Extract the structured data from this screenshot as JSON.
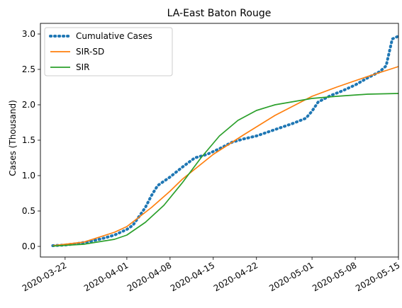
{
  "chart_data": {
    "type": "line",
    "title": "LA-East Baton Rouge",
    "xlabel": "",
    "ylabel": "Cases (Thousand)",
    "x_type": "date",
    "xlim": [
      "2020-03-18",
      "2020-05-15"
    ],
    "ylim": [
      -0.15,
      3.15
    ],
    "x_ticks": [
      "2020-03-22",
      "2020-04-01",
      "2020-04-08",
      "2020-04-15",
      "2020-04-22",
      "2020-05-01",
      "2020-05-08",
      "2020-05-15"
    ],
    "y_ticks": [
      0.0,
      0.5,
      1.0,
      1.5,
      2.0,
      2.5,
      3.0
    ],
    "y_tick_labels": [
      "0.0",
      "0.5",
      "1.0",
      "1.5",
      "2.0",
      "2.5",
      "3.0"
    ],
    "grid": false,
    "legend_position": "top-left",
    "series": [
      {
        "name": "Cumulative Cases",
        "style": "dotted",
        "color": "#1f77b4",
        "points": [
          [
            "2020-03-20",
            0.01
          ],
          [
            "2020-03-22",
            0.02
          ],
          [
            "2020-03-24",
            0.04
          ],
          [
            "2020-03-26",
            0.07
          ],
          [
            "2020-03-28",
            0.11
          ],
          [
            "2020-03-30",
            0.16
          ],
          [
            "2020-04-01",
            0.24
          ],
          [
            "2020-04-02",
            0.3
          ],
          [
            "2020-04-04",
            0.55
          ],
          [
            "2020-04-05",
            0.72
          ],
          [
            "2020-04-06",
            0.86
          ],
          [
            "2020-04-08",
            0.98
          ],
          [
            "2020-04-10",
            1.12
          ],
          [
            "2020-04-12",
            1.25
          ],
          [
            "2020-04-14",
            1.3
          ],
          [
            "2020-04-16",
            1.38
          ],
          [
            "2020-04-18",
            1.47
          ],
          [
            "2020-04-20",
            1.52
          ],
          [
            "2020-04-22",
            1.56
          ],
          [
            "2020-04-24",
            1.62
          ],
          [
            "2020-04-26",
            1.68
          ],
          [
            "2020-04-28",
            1.74
          ],
          [
            "2020-04-30",
            1.81
          ],
          [
            "2020-05-01",
            1.91
          ],
          [
            "2020-05-02",
            2.04
          ],
          [
            "2020-05-04",
            2.13
          ],
          [
            "2020-05-06",
            2.2
          ],
          [
            "2020-05-08",
            2.28
          ],
          [
            "2020-05-10",
            2.38
          ],
          [
            "2020-05-12",
            2.47
          ],
          [
            "2020-05-13",
            2.55
          ],
          [
            "2020-05-14",
            2.93
          ],
          [
            "2020-05-15",
            2.97
          ]
        ]
      },
      {
        "name": "SIR-SD",
        "style": "solid",
        "color": "#ff7f0e",
        "points": [
          [
            "2020-03-20",
            0.01
          ],
          [
            "2020-03-25",
            0.06
          ],
          [
            "2020-03-30",
            0.2
          ],
          [
            "2020-04-01",
            0.28
          ],
          [
            "2020-04-05",
            0.55
          ],
          [
            "2020-04-08",
            0.78
          ],
          [
            "2020-04-10",
            0.95
          ],
          [
            "2020-04-15",
            1.3
          ],
          [
            "2020-04-20",
            1.58
          ],
          [
            "2020-04-25",
            1.85
          ],
          [
            "2020-05-01",
            2.12
          ],
          [
            "2020-05-05",
            2.25
          ],
          [
            "2020-05-10",
            2.4
          ],
          [
            "2020-05-15",
            2.54
          ]
        ]
      },
      {
        "name": "SIR",
        "style": "solid",
        "color": "#2ca02c",
        "points": [
          [
            "2020-03-20",
            0.005
          ],
          [
            "2020-03-25",
            0.03
          ],
          [
            "2020-03-30",
            0.1
          ],
          [
            "2020-04-01",
            0.16
          ],
          [
            "2020-04-04",
            0.34
          ],
          [
            "2020-04-07",
            0.58
          ],
          [
            "2020-04-10",
            0.9
          ],
          [
            "2020-04-13",
            1.25
          ],
          [
            "2020-04-16",
            1.56
          ],
          [
            "2020-04-19",
            1.78
          ],
          [
            "2020-04-22",
            1.92
          ],
          [
            "2020-04-25",
            2.0
          ],
          [
            "2020-05-01",
            2.09
          ],
          [
            "2020-05-05",
            2.12
          ],
          [
            "2020-05-10",
            2.15
          ],
          [
            "2020-05-15",
            2.16
          ]
        ]
      }
    ]
  }
}
